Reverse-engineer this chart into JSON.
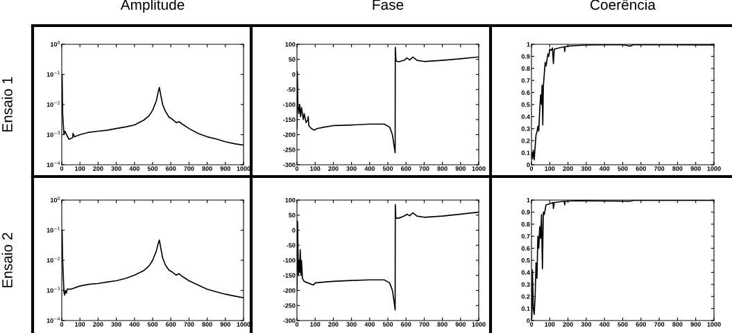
{
  "chart_data": [
    {
      "type": "line",
      "title": "Amplitude",
      "ylabel": "Ensaio 1",
      "log": "y",
      "xlim": [
        0,
        1000
      ],
      "xticks": [
        0,
        100,
        200,
        300,
        400,
        500,
        600,
        700,
        800,
        900,
        1000
      ],
      "ylim": [
        0.0001,
        1
      ],
      "yticks": [
        {
          "value": 0.0001,
          "label": "10$^{−4}$"
        },
        {
          "value": 0.001,
          "label": "10$^{−3}$"
        },
        {
          "value": 0.01,
          "label": "10$^{−2}$"
        },
        {
          "value": 0.1,
          "label": "10$^{−1}$"
        },
        {
          "value": 1,
          "label": "10$^{0}$"
        }
      ],
      "x": [
        2,
        5,
        12,
        18,
        30,
        40,
        60,
        62,
        70,
        100,
        150,
        200,
        250,
        300,
        350,
        400,
        450,
        480,
        500,
        520,
        530,
        537,
        545,
        555,
        570,
        590,
        610,
        630,
        645,
        660,
        700,
        750,
        800,
        850,
        900,
        950,
        1000
      ],
      "series": [
        {
          "color": "#000000",
          "values": [
            0.1,
            0.005,
            0.001,
            0.0013,
            0.0009,
            0.0007,
            0.0008,
            0.0011,
            0.00085,
            0.001,
            0.0012,
            0.0013,
            0.0014,
            0.0016,
            0.0018,
            0.0021,
            0.003,
            0.0042,
            0.0065,
            0.013,
            0.025,
            0.037,
            0.02,
            0.01,
            0.006,
            0.0038,
            0.0032,
            0.0025,
            0.0027,
            0.0023,
            0.0016,
            0.0011,
            0.00085,
            0.00072,
            0.00058,
            0.0005,
            0.00045
          ]
        }
      ]
    },
    {
      "type": "line",
      "title": "Fase",
      "xlim": [
        0,
        1000
      ],
      "xticks": [
        0,
        100,
        200,
        300,
        400,
        500,
        600,
        700,
        800,
        900,
        1000
      ],
      "ylim": [
        -300,
        100
      ],
      "yticks": [
        -300,
        -250,
        -200,
        -150,
        -100,
        -50,
        0,
        50,
        100
      ],
      "x": [
        0,
        2,
        5,
        10,
        15,
        20,
        25,
        35,
        40,
        50,
        60,
        62,
        65,
        80,
        95,
        110,
        150,
        200,
        300,
        400,
        480,
        510,
        525,
        535,
        540,
        541,
        545,
        560,
        590,
        605,
        620,
        638,
        660,
        700,
        800,
        900,
        1000
      ],
      "series": [
        {
          "color": "#000000",
          "values": [
            -180,
            10,
            -100,
            -130,
            -100,
            -140,
            -110,
            -150,
            -130,
            -160,
            -150,
            -140,
            -170,
            -180,
            -185,
            -180,
            -175,
            -170,
            -168,
            -165,
            -165,
            -175,
            -200,
            -240,
            -260,
            90,
            45,
            42,
            47,
            55,
            48,
            58,
            47,
            43,
            47,
            52,
            58
          ]
        }
      ]
    },
    {
      "type": "line",
      "title": "Coerência",
      "xlim": [
        0,
        1000
      ],
      "xticks": [
        0,
        100,
        200,
        300,
        400,
        500,
        600,
        700,
        800,
        900,
        1000
      ],
      "ylim": [
        0,
        1
      ],
      "yticks": [
        0,
        0.1,
        0.2,
        0.3,
        0.4,
        0.5,
        0.6,
        0.7,
        0.8,
        0.9,
        1
      ],
      "x": [
        2,
        5,
        10,
        15,
        20,
        25,
        30,
        35,
        40,
        45,
        50,
        55,
        58,
        62,
        65,
        70,
        75,
        80,
        90,
        95,
        100,
        110,
        115,
        120,
        125,
        150,
        180,
        182,
        185,
        200,
        250,
        300,
        500,
        540,
        560,
        1000
      ],
      "series": [
        {
          "color": "#000000",
          "values": [
            0.1,
            0.05,
            0.12,
            0.04,
            0.15,
            0.25,
            0.27,
            0.32,
            0.28,
            0.45,
            0.58,
            0.5,
            0.66,
            0.33,
            0.65,
            0.75,
            0.85,
            0.82,
            0.92,
            0.9,
            0.96,
            0.95,
            0.97,
            0.84,
            0.96,
            0.97,
            0.98,
            0.94,
            0.98,
            0.985,
            0.99,
            0.995,
            0.997,
            0.985,
            0.997,
            0.995
          ]
        }
      ]
    },
    {
      "type": "line",
      "ylabel": "Ensaio 2",
      "log": "y",
      "xlim": [
        0,
        1000
      ],
      "xticks": [
        0,
        100,
        200,
        300,
        400,
        500,
        600,
        700,
        800,
        900,
        1000
      ],
      "ylim": [
        0.0001,
        1
      ],
      "yticks": [
        {
          "value": 0.0001,
          "label": "10$^{−4}$"
        },
        {
          "value": 0.001,
          "label": "10$^{−3}$"
        },
        {
          "value": 0.01,
          "label": "10$^{−2}$"
        },
        {
          "value": 0.1,
          "label": "10$^{−1}$"
        },
        {
          "value": 1,
          "label": "10$^{0}$"
        }
      ],
      "x": [
        2,
        5,
        12,
        15,
        20,
        25,
        30,
        50,
        100,
        150,
        200,
        250,
        300,
        350,
        400,
        450,
        480,
        500,
        520,
        530,
        537,
        545,
        555,
        570,
        590,
        610,
        630,
        645,
        660,
        700,
        750,
        800,
        850,
        900,
        950,
        1000
      ],
      "series": [
        {
          "color": "#000000",
          "values": [
            0.1,
            0.01,
            0.0009,
            0.0007,
            0.001,
            0.0008,
            0.0011,
            0.0011,
            0.0014,
            0.0016,
            0.0017,
            0.0019,
            0.0021,
            0.0025,
            0.0032,
            0.0045,
            0.0065,
            0.01,
            0.02,
            0.035,
            0.047,
            0.025,
            0.012,
            0.007,
            0.0047,
            0.004,
            0.0032,
            0.0036,
            0.003,
            0.0021,
            0.0015,
            0.0011,
            0.0009,
            0.00075,
            0.00065,
            0.00057
          ]
        }
      ]
    },
    {
      "type": "line",
      "xlim": [
        0,
        1000
      ],
      "xticks": [
        0,
        100,
        200,
        300,
        400,
        500,
        600,
        700,
        800,
        900,
        1000
      ],
      "ylim": [
        -300,
        100
      ],
      "yticks": [
        -300,
        -250,
        -200,
        -150,
        -100,
        -50,
        0,
        50,
        100
      ],
      "x": [
        0,
        3,
        8,
        12,
        15,
        18,
        22,
        25,
        30,
        40,
        60,
        90,
        100,
        150,
        200,
        300,
        400,
        480,
        510,
        525,
        535,
        540,
        541,
        544,
        560,
        590,
        605,
        620,
        638,
        660,
        700,
        800,
        900,
        1000
      ],
      "series": [
        {
          "color": "#000000",
          "values": [
            -200,
            30,
            -150,
            -100,
            -140,
            -65,
            -150,
            -100,
            -160,
            -170,
            -175,
            -182,
            -175,
            -172,
            -170,
            -167,
            -165,
            -165,
            -175,
            -200,
            -240,
            -265,
            85,
            40,
            40,
            47,
            53,
            48,
            58,
            47,
            43,
            47,
            53,
            60
          ]
        }
      ]
    },
    {
      "type": "line",
      "xlim": [
        0,
        1000
      ],
      "xticks": [
        0,
        100,
        200,
        300,
        400,
        500,
        600,
        700,
        800,
        900,
        1000
      ],
      "ylim": [
        0,
        1
      ],
      "yticks": [
        0,
        0.1,
        0.2,
        0.3,
        0.4,
        0.5,
        0.6,
        0.7,
        0.8,
        0.9,
        1
      ],
      "x": [
        2,
        5,
        10,
        15,
        20,
        25,
        30,
        35,
        40,
        45,
        50,
        55,
        60,
        65,
        70,
        80,
        100,
        118,
        120,
        125,
        180,
        182,
        185,
        250,
        540,
        560,
        1000
      ],
      "series": [
        {
          "color": "#000000",
          "values": [
            0.02,
            0.42,
            0.1,
            0.05,
            0.2,
            0.48,
            0.35,
            0.7,
            0.6,
            0.78,
            0.68,
            0.88,
            0.43,
            0.9,
            0.88,
            0.96,
            0.97,
            0.98,
            0.93,
            0.98,
            0.99,
            0.96,
            0.99,
            0.995,
            0.99,
            0.997,
            0.997
          ]
        }
      ]
    }
  ]
}
